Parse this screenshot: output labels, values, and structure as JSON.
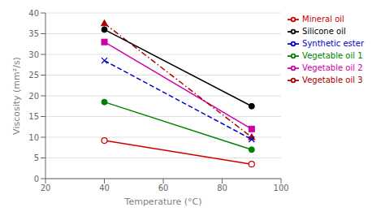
{
  "chart_data": {
    "type": "line",
    "xlabel": "Temperature (°C)",
    "ylabel": "Viscosity (mm²/s)",
    "x": [
      40,
      90
    ],
    "xlim": [
      20,
      100
    ],
    "ylim": [
      0,
      40
    ],
    "xticks": [
      20,
      40,
      60,
      80,
      100
    ],
    "yticks": [
      0,
      5,
      10,
      15,
      20,
      25,
      30,
      35,
      40
    ],
    "grid": "y",
    "legend": "right",
    "series": [
      {
        "name": "Vegetable oil 1",
        "color": "#008000",
        "values": [
          18.5,
          7.0
        ],
        "marker": "circle",
        "line_style": "solid"
      },
      {
        "name": "Vegetable oil 2",
        "color": "#cc00aa",
        "values": [
          33.0,
          12.0
        ],
        "marker": "square",
        "line_style": "solid"
      },
      {
        "name": "Vegetable oil 3",
        "color": "#aa0000",
        "values": [
          37.5,
          10.0
        ],
        "marker": "triangle",
        "line_style": "dashdot"
      },
      {
        "name": "Synthetic ester",
        "color": "#0000cc",
        "values": [
          28.5,
          9.5
        ],
        "marker": "x",
        "line_style": "dashed"
      },
      {
        "name": "Mineral oil",
        "color": "#cc0000",
        "values": [
          9.2,
          3.5
        ],
        "marker": "open_circle",
        "line_style": "solid"
      },
      {
        "name": "Silicone oil",
        "color": "#000000",
        "values": [
          36.0,
          17.5
        ],
        "marker": "circle",
        "line_style": "solid"
      }
    ]
  }
}
